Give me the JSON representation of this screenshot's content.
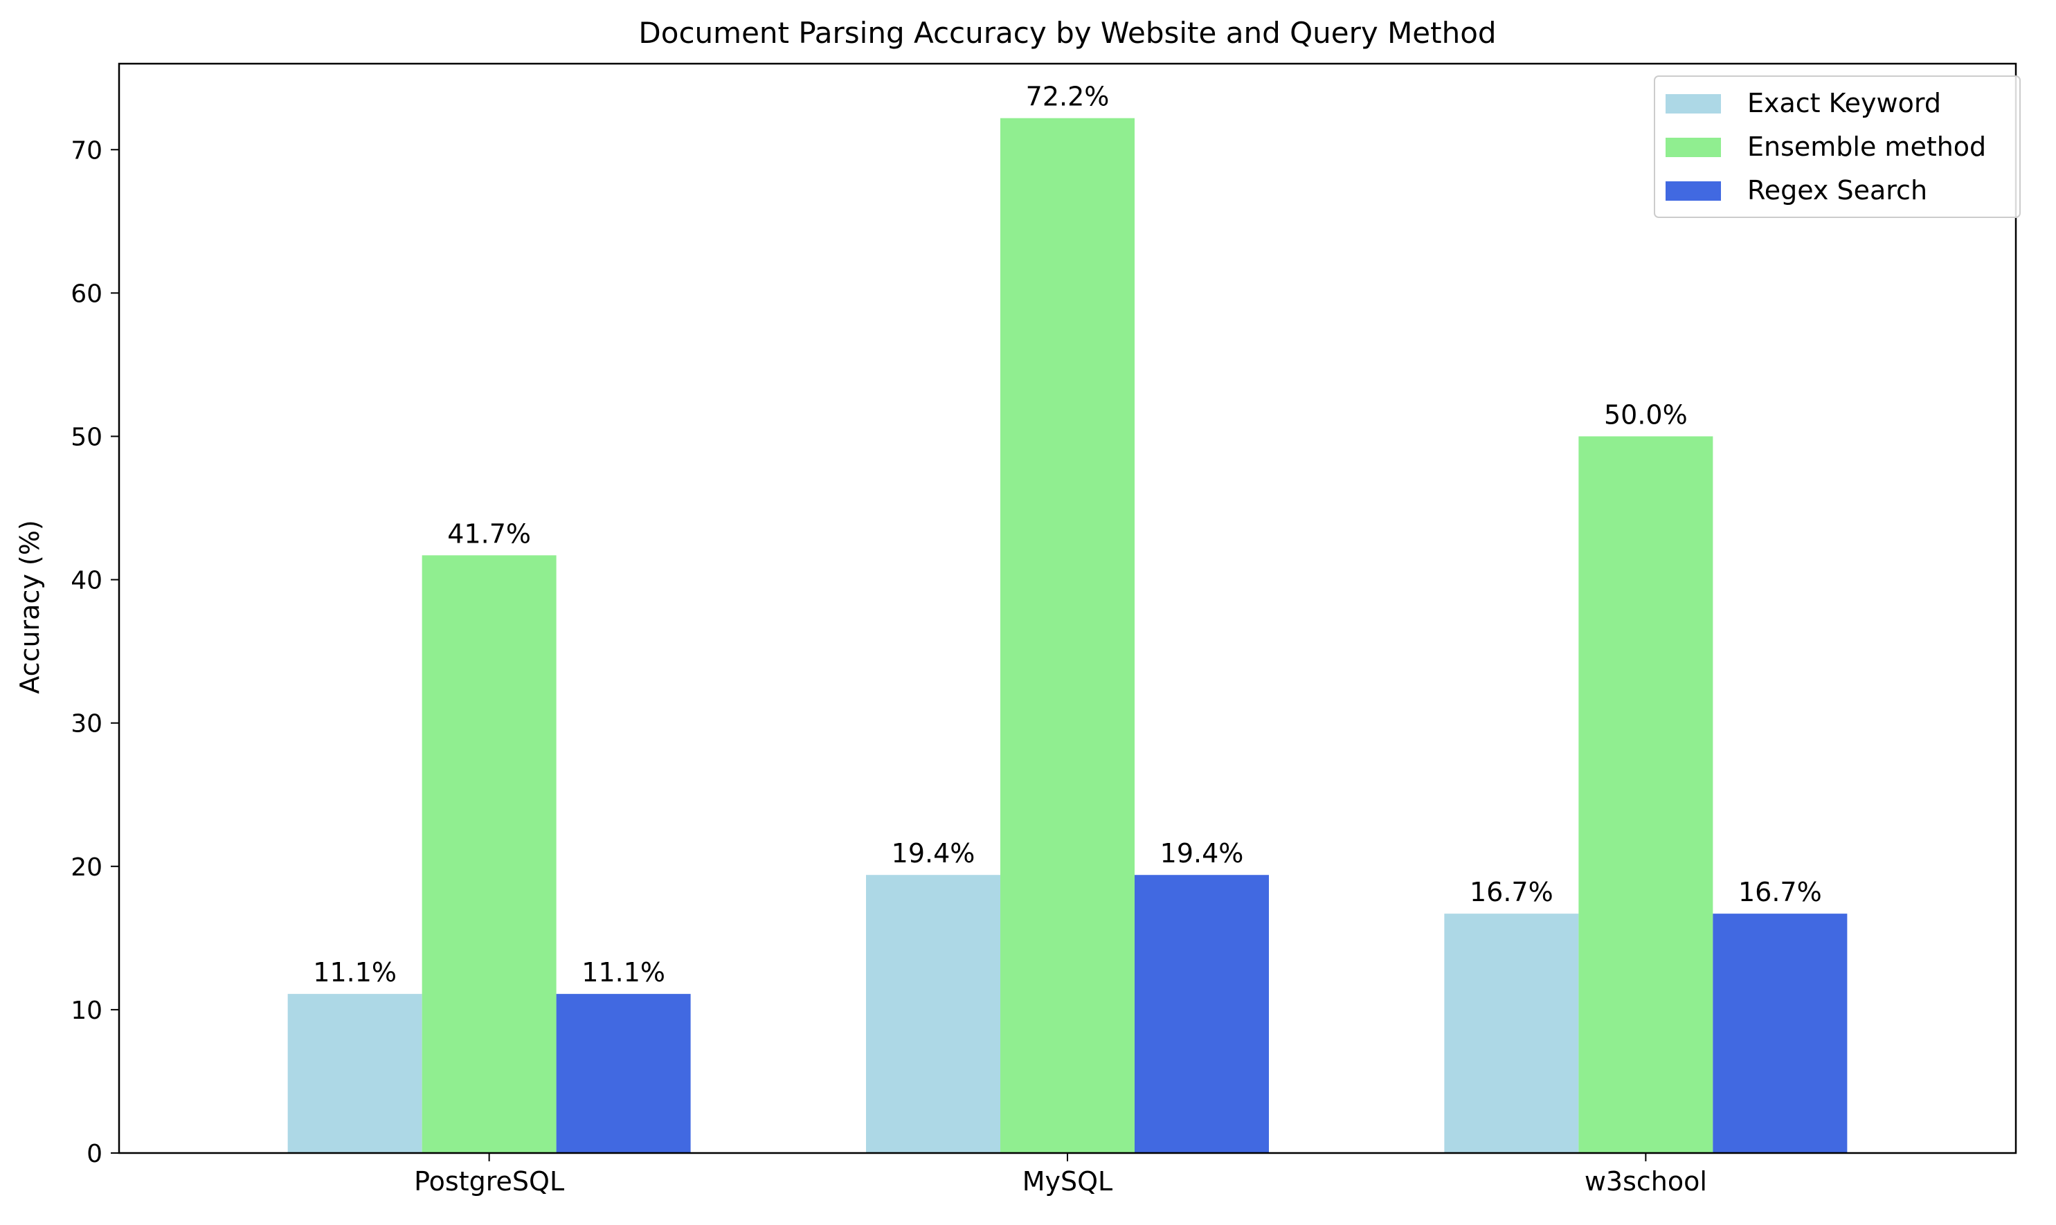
{
  "chart_data": {
    "type": "bar",
    "title": "Document Parsing Accuracy by Website and Query Method",
    "xlabel": "",
    "ylabel": "Accuracy (%)",
    "categories": [
      "PostgreSQL",
      "MySQL",
      "w3school"
    ],
    "ylim": [
      0,
      76
    ],
    "yticks": [
      0,
      10,
      20,
      30,
      40,
      50,
      60,
      70
    ],
    "grid": false,
    "legend_position": "top-right",
    "series": [
      {
        "name": "Exact Keyword",
        "color": "#add8e6",
        "values": [
          11.1,
          19.4,
          16.7
        ],
        "labels": [
          "11.1%",
          "19.4%",
          "16.7%"
        ]
      },
      {
        "name": "Ensemble method",
        "color": "#90ee90",
        "values": [
          41.7,
          72.2,
          50.0
        ],
        "labels": [
          "41.7%",
          "72.2%",
          "50.0%"
        ]
      },
      {
        "name": "Regex Search",
        "color": "#4169e1",
        "values": [
          11.1,
          19.4,
          16.7
        ],
        "labels": [
          "11.1%",
          "19.4%",
          "16.7%"
        ]
      }
    ]
  }
}
